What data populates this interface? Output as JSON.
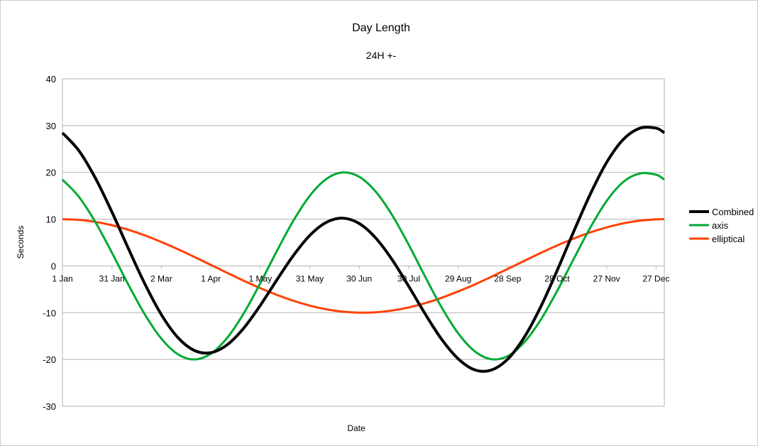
{
  "chart_data": {
    "type": "line",
    "title": "Day Length",
    "subtitle": "24H +-",
    "xlabel": "Date",
    "ylabel": "Seconds",
    "ylim": [
      -30,
      40
    ],
    "xlim": [
      0,
      365
    ],
    "yticks": [
      40,
      30,
      20,
      10,
      0,
      -10,
      -20,
      -30
    ],
    "xticks": [
      {
        "day": 0,
        "label": "1 Jan"
      },
      {
        "day": 30,
        "label": "31 Jan"
      },
      {
        "day": 60,
        "label": "2 Mar"
      },
      {
        "day": 90,
        "label": "1 Apr"
      },
      {
        "day": 120,
        "label": "1 May"
      },
      {
        "day": 150,
        "label": "31 May"
      },
      {
        "day": 180,
        "label": "30 Jun"
      },
      {
        "day": 210,
        "label": "30 Jul"
      },
      {
        "day": 240,
        "label": "29 Aug"
      },
      {
        "day": 270,
        "label": "28 Sep"
      },
      {
        "day": 300,
        "label": "28 Oct"
      },
      {
        "day": 330,
        "label": "27 Nov"
      },
      {
        "day": 360,
        "label": "27 Dec"
      }
    ],
    "grid": true,
    "legend": "right",
    "x": [
      0,
      10,
      20,
      30,
      40,
      50,
      60,
      70,
      80,
      90,
      100,
      110,
      120,
      130,
      140,
      150,
      160,
      170,
      180,
      190,
      200,
      210,
      220,
      230,
      240,
      250,
      260,
      270,
      280,
      290,
      300,
      310,
      320,
      330,
      340,
      350,
      360,
      365
    ],
    "series": [
      {
        "name": "Combined",
        "color": "#000000",
        "width": 4,
        "values": [
          28.45,
          24.62,
          18.76,
          11.53,
          3.7,
          -3.87,
          -10.43,
          -15.31,
          -18.08,
          -18.55,
          -16.84,
          -13.28,
          -8.43,
          -3.01,
          2.2,
          6.52,
          9.31,
          10.21,
          9.06,
          5.96,
          1.3,
          -4.36,
          -10.28,
          -15.7,
          -19.86,
          -22.22,
          -22.28,
          -19.94,
          -15.29,
          -8.78,
          -0.99,
          7.3,
          15.27,
          22.12,
          27.0,
          29.42,
          29.46,
          28.45
        ]
      },
      {
        "name": "axis",
        "color": "#00a933",
        "width": 3,
        "values": [
          18.45,
          14.77,
          9.35,
          2.83,
          -4.02,
          -10.39,
          -15.55,
          -18.89,
          -20.0,
          -18.77,
          -15.34,
          -10.1,
          -3.68,
          3.17,
          9.65,
          15.0,
          18.58,
          19.99,
          19.05,
          15.87,
          10.83,
          4.52,
          -2.32,
          -8.89,
          -14.41,
          -18.25,
          -19.94,
          -19.29,
          -16.36,
          -11.54,
          -5.36,
          1.46,
          8.12,
          13.88,
          17.91,
          19.75,
          19.5,
          18.45
        ]
      },
      {
        "name": "elliptical",
        "color": "#ff4000",
        "width": 3,
        "values": [
          10,
          9.85,
          9.41,
          8.7,
          7.72,
          6.52,
          5.12,
          3.58,
          1.92,
          0.22,
          -1.5,
          -3.18,
          -4.75,
          -6.18,
          -7.45,
          -8.48,
          -9.27,
          -9.78,
          -9.99,
          -9.91,
          -9.53,
          -8.88,
          -7.96,
          -6.81,
          -5.45,
          -3.97,
          -2.34,
          -0.65,
          1.07,
          2.76,
          4.37,
          5.84,
          7.15,
          8.24,
          9.09,
          9.67,
          9.96,
          10
        ]
      }
    ]
  }
}
